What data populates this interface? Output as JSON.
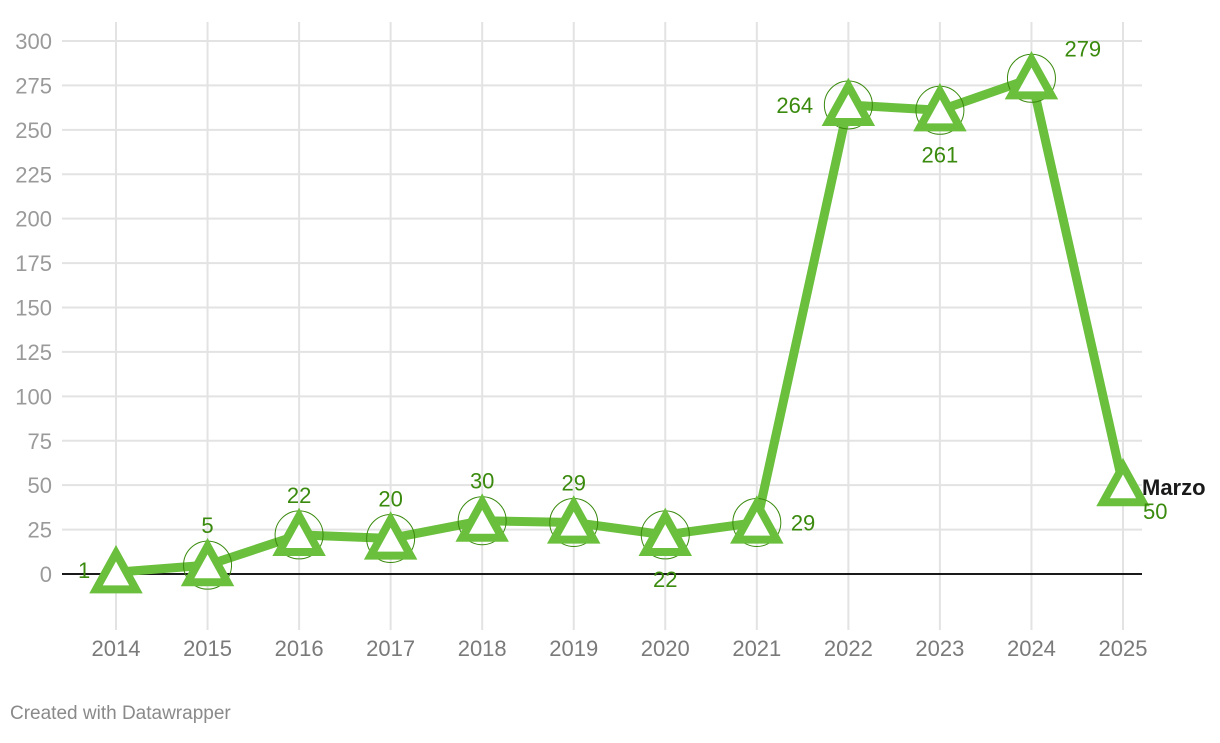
{
  "chart_data": {
    "type": "line",
    "x": [
      "2014",
      "2015",
      "2016",
      "2017",
      "2018",
      "2019",
      "2020",
      "2021",
      "2022",
      "2023",
      "2024",
      "2025"
    ],
    "series": [
      {
        "values": [
          1,
          5,
          22,
          20,
          30,
          29,
          22,
          29,
          264,
          261,
          279,
          50
        ]
      }
    ],
    "data_labels": [
      "1",
      "5",
      "22",
      "20",
      "30",
      "29",
      "22",
      "29",
      "264",
      "261",
      "279",
      "50"
    ],
    "annotations": [
      {
        "x": "2025",
        "text": "Marzo"
      }
    ],
    "y_ticks": [
      0,
      25,
      50,
      75,
      100,
      125,
      150,
      175,
      200,
      225,
      250,
      275,
      300
    ],
    "ylim": [
      -25,
      300
    ],
    "grid": true,
    "legend": "none",
    "colors": {
      "line": "#6abf3c",
      "label": "#3a8a0e",
      "tick": "#9a9a9a",
      "grid": "#e3e3e3",
      "zero": "#1a1a1a",
      "annotation": "#1a1a1a"
    }
  },
  "credit": "Created with Datawrapper"
}
